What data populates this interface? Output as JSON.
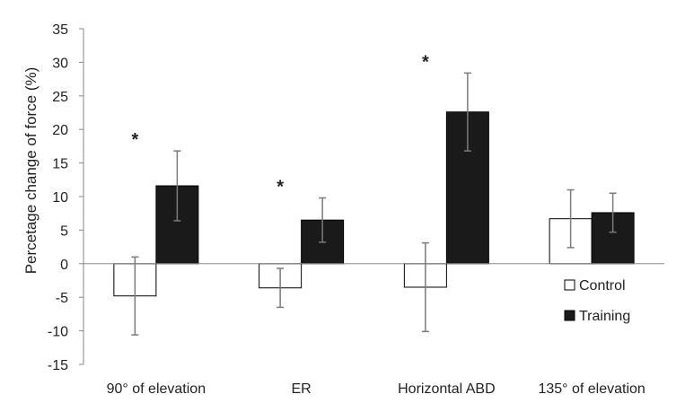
{
  "chart_data": {
    "type": "bar",
    "title": "",
    "xlabel": "",
    "ylabel": "Percetage change of force (%)",
    "ylim": [
      -15,
      35
    ],
    "yticks": [
      35,
      30,
      25,
      20,
      15,
      10,
      5,
      0,
      -5,
      -10,
      -15
    ],
    "categories": [
      "90° of elevation",
      "ER",
      "Horizontal ABD",
      "135° of elevation"
    ],
    "series": [
      {
        "name": "Control",
        "fill": "#ffffff",
        "stroke": "#000000",
        "values": [
          -4.8,
          -3.6,
          -3.5,
          6.7
        ],
        "error": [
          5.8,
          2.9,
          6.6,
          4.3
        ]
      },
      {
        "name": "Training",
        "fill": "#1a1a1a",
        "stroke": "#000000",
        "values": [
          11.6,
          6.5,
          22.6,
          7.6
        ],
        "error": [
          5.2,
          3.3,
          5.8,
          2.9
        ]
      }
    ],
    "annotations": [
      {
        "category": "90° of elevation",
        "text": "*"
      },
      {
        "category": "ER",
        "text": "*"
      },
      {
        "category": "Horizontal ABD",
        "text": "*"
      }
    ],
    "legend_position": "right",
    "grid": false
  }
}
